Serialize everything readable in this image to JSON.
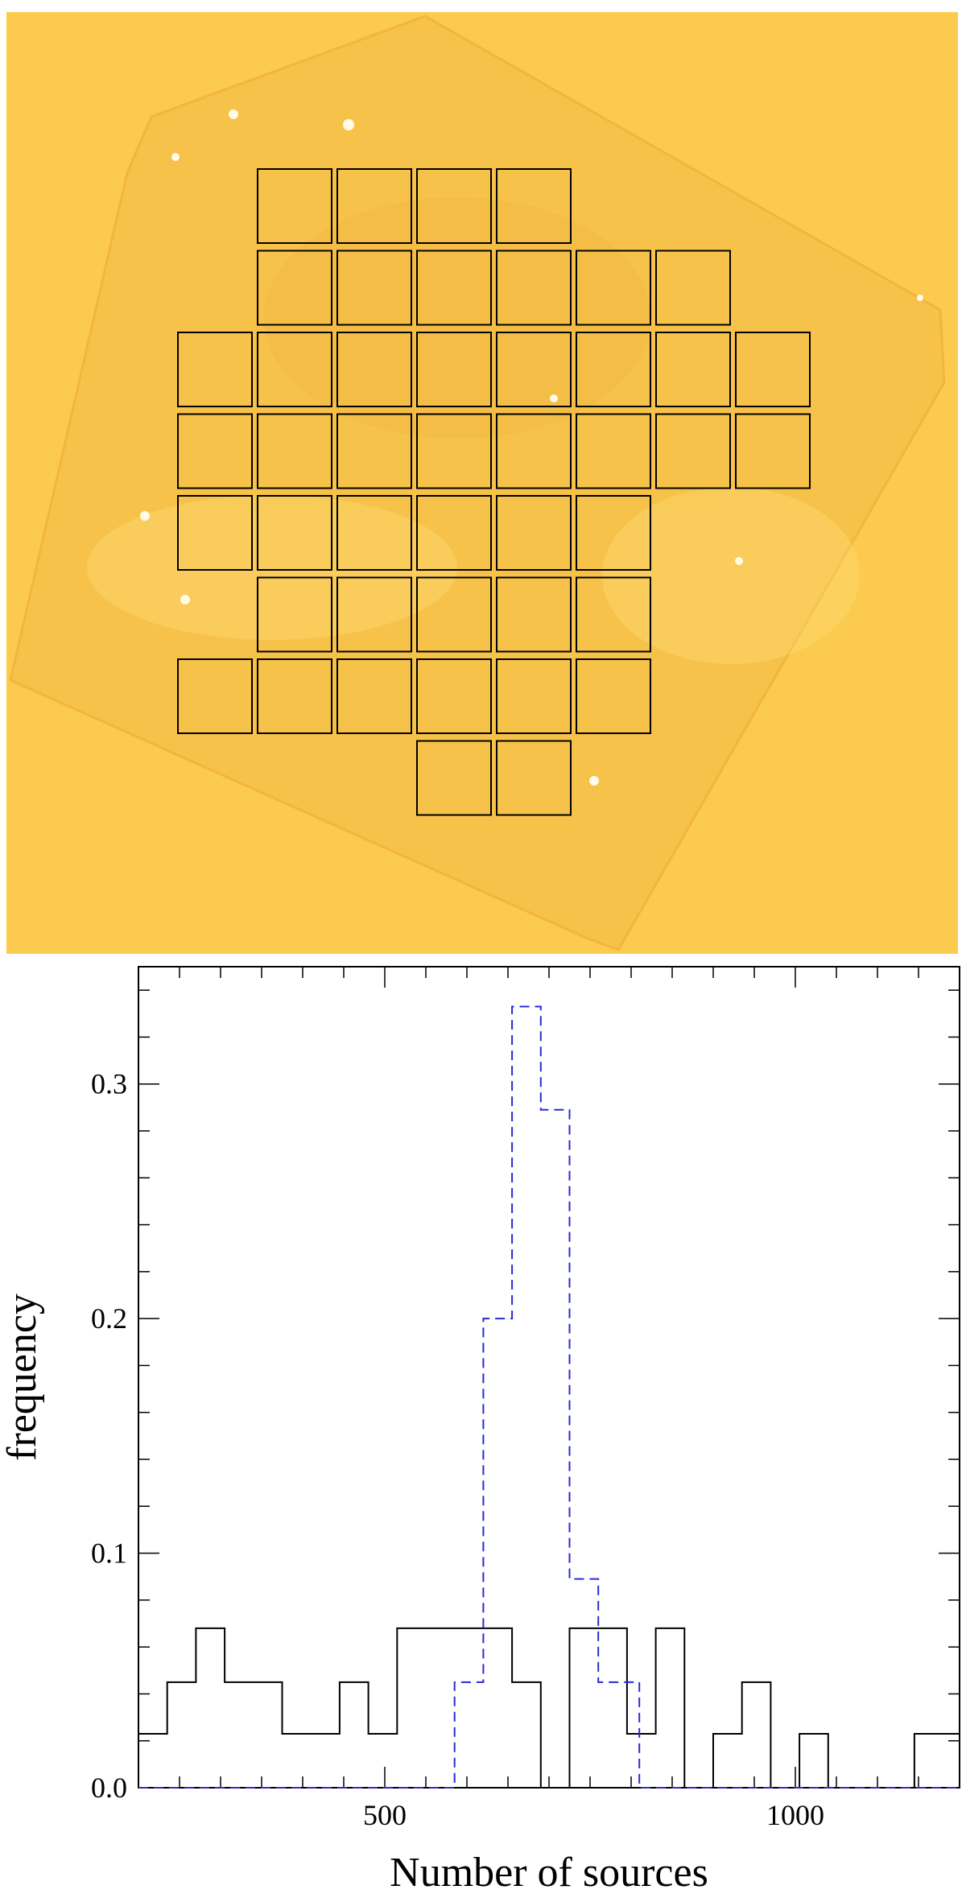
{
  "colors": {
    "background_field": "#fcca4f",
    "sky_map": "#f7c24a",
    "mosaic_tile_border": "#000000",
    "series_solid": "#000000",
    "series_dashed": "#2a2ad6"
  },
  "mosaic": {
    "rows": [
      [
        1,
        2,
        3,
        4
      ],
      [
        1,
        2,
        3,
        4,
        5,
        6
      ],
      [
        0,
        1,
        2,
        3,
        4,
        5,
        6,
        7
      ],
      [
        0,
        1,
        2,
        3,
        4,
        5,
        6,
        7
      ],
      [
        0,
        1,
        2,
        3,
        4,
        5
      ],
      [
        1,
        2,
        3,
        4,
        5
      ],
      [
        0,
        1,
        2,
        3,
        4,
        5
      ],
      [
        3,
        4
      ]
    ]
  },
  "chart_data": {
    "type": "bar",
    "style": "step histogram",
    "xlabel": "Number of sources",
    "ylabel": "frequency",
    "xlim": [
      200,
      1200
    ],
    "ylim": [
      0,
      0.35
    ],
    "xticks": [
      500,
      1000
    ],
    "xtick_labels": [
      "500",
      "1000"
    ],
    "yticks": [
      0.0,
      0.1,
      0.2,
      0.3
    ],
    "ytick_labels": [
      "0.0",
      "0.1",
      "0.2",
      "0.3"
    ],
    "grid": false,
    "series": [
      {
        "style": "solid",
        "bin_edges": [
          200,
          235,
          270,
          305,
          340,
          375,
          410,
          445,
          480,
          515,
          550,
          585,
          620,
          655,
          690,
          725,
          760,
          795,
          830,
          865,
          900,
          935,
          970,
          1005,
          1040,
          1075,
          1110,
          1145,
          1180,
          1200
        ],
        "values": [
          0.023,
          0.045,
          0.068,
          0.045,
          0.045,
          0.023,
          0.023,
          0.045,
          0.023,
          0.068,
          0.068,
          0.068,
          0.068,
          0.045,
          0,
          0.068,
          0.068,
          0.023,
          0.068,
          0,
          0.023,
          0.045,
          0,
          0.023,
          0,
          0,
          0,
          0.023,
          0.023
        ]
      },
      {
        "style": "dashed",
        "bin_edges": [
          200,
          585,
          620,
          655,
          690,
          725,
          760,
          775,
          810,
          1200
        ],
        "values": [
          0,
          0.045,
          0.2,
          0.333,
          0.289,
          0.089,
          0.045,
          0.045,
          0
        ]
      }
    ]
  }
}
